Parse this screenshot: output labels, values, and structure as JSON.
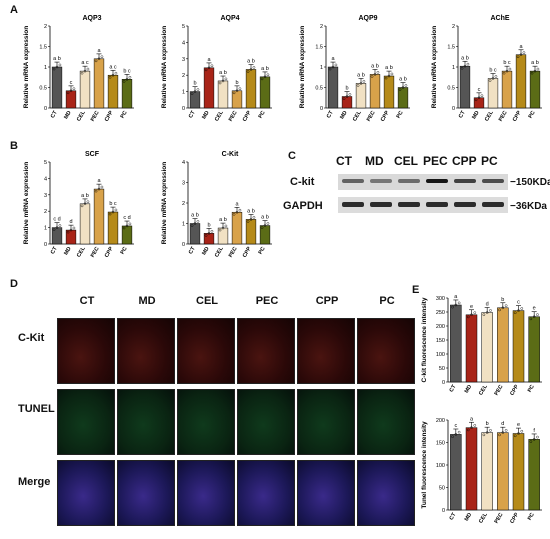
{
  "panels": {
    "A": "A",
    "B": "B",
    "C": "C",
    "D": "D",
    "E": "E"
  },
  "chart_data": [
    {
      "id": "aqp3",
      "type": "bar",
      "title": "AQP3",
      "ylabel": "Relative mRNA expression",
      "categories": [
        "CT",
        "MD",
        "CEL",
        "PEC",
        "CPP",
        "PC"
      ],
      "values": [
        1.0,
        0.42,
        0.9,
        1.2,
        0.8,
        0.7
      ],
      "ylim": [
        0,
        2.0
      ],
      "yticks": [
        0,
        0.5,
        1.0,
        1.5,
        2.0
      ],
      "letters": [
        "a b",
        "c",
        "a c",
        "a",
        "a c",
        "b c"
      ],
      "colors": [
        "#555555",
        "#a82418",
        "#f1e1c3",
        "#d8a24a",
        "#b58a19",
        "#5b6c16"
      ]
    },
    {
      "id": "aqp4",
      "type": "bar",
      "title": "AQP4",
      "ylabel": "Relative mRNA expression",
      "categories": [
        "CT",
        "MD",
        "CEL",
        "PEC",
        "CPP",
        "PC"
      ],
      "values": [
        1.0,
        2.45,
        1.65,
        1.05,
        2.35,
        1.9
      ],
      "ylim": [
        0,
        5
      ],
      "yticks": [
        0,
        1,
        2,
        3,
        4,
        5
      ],
      "letters": [
        "b",
        "a",
        "a b",
        "b",
        "a b",
        "a b"
      ],
      "colors": [
        "#555555",
        "#a82418",
        "#f1e1c3",
        "#d8a24a",
        "#b58a19",
        "#5b6c16"
      ]
    },
    {
      "id": "aqp9",
      "type": "bar",
      "title": "AQP9",
      "ylabel": "Relative mRNA expression",
      "categories": [
        "CT",
        "MD",
        "CEL",
        "PEC",
        "CPP",
        "PC"
      ],
      "values": [
        1.0,
        0.28,
        0.6,
        0.82,
        0.78,
        0.5
      ],
      "ylim": [
        0,
        2.0
      ],
      "yticks": [
        0,
        0.5,
        1.0,
        1.5,
        2.0
      ],
      "letters": [
        "a",
        "b",
        "a b",
        "a b",
        "a b",
        "a b"
      ],
      "colors": [
        "#555555",
        "#a82418",
        "#f1e1c3",
        "#d8a24a",
        "#b58a19",
        "#5b6c16"
      ]
    },
    {
      "id": "ache",
      "type": "bar",
      "title": "AChE",
      "ylabel": "Relative mRNA expression",
      "categories": [
        "CT",
        "MD",
        "CEL",
        "PEC",
        "CPP",
        "PC"
      ],
      "values": [
        1.02,
        0.25,
        0.72,
        0.9,
        1.3,
        0.9
      ],
      "ylim": [
        0,
        2.0
      ],
      "yticks": [
        0,
        0.5,
        1.0,
        1.5,
        2.0
      ],
      "letters": [
        "a b",
        "c",
        "b c",
        "b c",
        "a",
        "a b"
      ],
      "colors": [
        "#555555",
        "#a82418",
        "#f1e1c3",
        "#d8a24a",
        "#b58a19",
        "#5b6c16"
      ]
    },
    {
      "id": "scf",
      "type": "bar",
      "title": "SCF",
      "ylabel": "Relative mRNA expression",
      "categories": [
        "CT",
        "MD",
        "CEL",
        "PEC",
        "CPP",
        "PC"
      ],
      "values": [
        1.0,
        0.85,
        2.45,
        3.35,
        1.95,
        1.1
      ],
      "ylim": [
        0,
        5
      ],
      "yticks": [
        0,
        1,
        2,
        3,
        4,
        5
      ],
      "letters": [
        "c d",
        "d",
        "a b",
        "a",
        "b c",
        "c d"
      ],
      "colors": [
        "#555555",
        "#a82418",
        "#f1e1c3",
        "#d8a24a",
        "#b58a19",
        "#5b6c16"
      ]
    },
    {
      "id": "ckit",
      "type": "bar",
      "title": "C-Kit",
      "ylabel": "Relative mRNA expression",
      "categories": [
        "CT",
        "MD",
        "CEL",
        "PEC",
        "CPP",
        "PC"
      ],
      "values": [
        1.0,
        0.52,
        0.78,
        1.55,
        1.2,
        0.9
      ],
      "ylim": [
        0,
        4
      ],
      "yticks": [
        0,
        1,
        2,
        3,
        4
      ],
      "letters": [
        "a b",
        "b",
        "a b",
        "a",
        "a b",
        "a b"
      ],
      "colors": [
        "#555555",
        "#a82418",
        "#f1e1c3",
        "#d8a24a",
        "#b58a19",
        "#5b6c16"
      ]
    },
    {
      "id": "ckit_fluor",
      "type": "bar",
      "title": "",
      "ylabel": "C-kit fluorescence intensity",
      "categories": [
        "CT",
        "MD",
        "CEL",
        "PEC",
        "CPP",
        "PC"
      ],
      "values": [
        275,
        240,
        248,
        265,
        255,
        233
      ],
      "ylim": [
        0,
        300
      ],
      "yticks": [
        0,
        50,
        100,
        150,
        200,
        250,
        300
      ],
      "letters": [
        "a",
        "e",
        "d",
        "b",
        "c",
        "e"
      ],
      "colors": [
        "#555555",
        "#a82418",
        "#f1e1c3",
        "#d8a24a",
        "#b58a19",
        "#5b6c16"
      ]
    },
    {
      "id": "tunel_fluor",
      "type": "bar",
      "title": "",
      "ylabel": "Tunel fluorescence intensity",
      "categories": [
        "CT",
        "MD",
        "CEL",
        "PEC",
        "CPP",
        "PC"
      ],
      "values": [
        168,
        183,
        172,
        172,
        170,
        157
      ],
      "ylim": [
        0,
        200
      ],
      "yticks": [
        0,
        50,
        100,
        150,
        200
      ],
      "letters": [
        "c",
        "a",
        "b",
        "d",
        "e",
        "f"
      ],
      "colors": [
        "#555555",
        "#a82418",
        "#f1e1c3",
        "#d8a24a",
        "#b58a19",
        "#5b6c16"
      ]
    }
  ],
  "western": {
    "lanes": [
      "CT",
      "MD",
      "CEL",
      "PEC",
      "CPP",
      "PC"
    ],
    "rows": [
      "C-kit",
      "GAPDH"
    ],
    "kda": [
      "150KDa",
      "36KDa"
    ]
  },
  "micro": {
    "columns": [
      "CT",
      "MD",
      "CEL",
      "PEC",
      "CPP",
      "PC"
    ],
    "rows": [
      "C-Kit",
      "TUNEL",
      "Merge"
    ]
  }
}
